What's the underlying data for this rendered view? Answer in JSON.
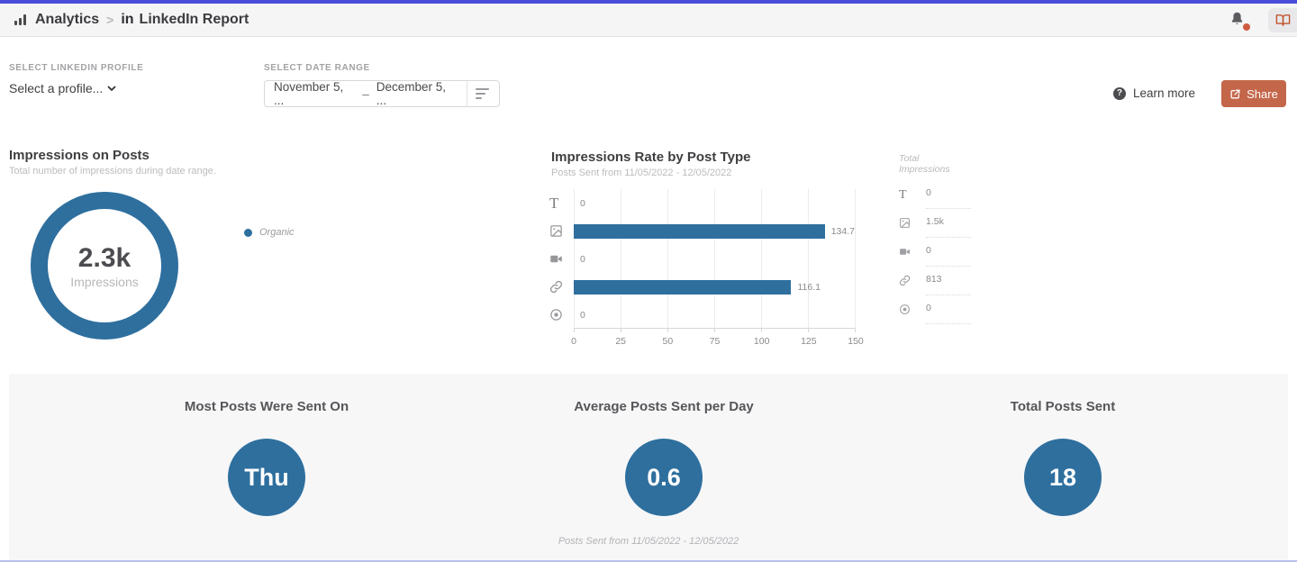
{
  "header": {
    "app": "Analytics",
    "crumb_separator": ">",
    "linkedin_mark": "in",
    "report_title": "LinkedIn Report"
  },
  "controls": {
    "profile_label": "SELECT LINKEDIN PROFILE",
    "profile_value": "Select a profile...",
    "date_label": "SELECT DATE RANGE",
    "date_start": "November 5, ...",
    "date_separator": "–",
    "date_end": "December 5, ...",
    "learn_more_label": "Learn more",
    "learn_more_icon_glyph": "?",
    "share_label": "Share"
  },
  "impressions_summary": {
    "title": "Impressions on Posts",
    "subtitle": "Total number of impressions during date range.",
    "value": "2.3k",
    "value_label": "Impressions",
    "legend": [
      {
        "label": "Organic",
        "color": "#2e6f9e"
      }
    ]
  },
  "chart_data": {
    "type": "bar",
    "orientation": "horizontal",
    "title": "Impressions Rate by Post Type",
    "subtitle": "Posts Sent from 11/05/2022 - 12/05/2022",
    "categories": [
      "text",
      "image",
      "video",
      "link",
      "other"
    ],
    "values": [
      0,
      134.7,
      0,
      116.1,
      0
    ],
    "value_labels": [
      "0",
      "134.7",
      "0",
      "116.1",
      "0"
    ],
    "xlim": [
      0,
      150
    ],
    "xticks": [
      "0",
      "25",
      "50",
      "75",
      "100",
      "125",
      "150"
    ],
    "bar_color": "#2e6f9e",
    "grid": true,
    "legend_position": "none"
  },
  "total_impressions": {
    "title": "Total Impressions",
    "rows": [
      {
        "category": "text",
        "value": "0"
      },
      {
        "category": "image",
        "value": "1.5k"
      },
      {
        "category": "video",
        "value": "0"
      },
      {
        "category": "link",
        "value": "813"
      },
      {
        "category": "other",
        "value": "0"
      }
    ]
  },
  "bottom_stats": {
    "stats": [
      {
        "label": "Most Posts Were Sent On",
        "value": "Thu"
      },
      {
        "label": "Average Posts Sent per Day",
        "value": "0.6"
      },
      {
        "label": "Total Posts Sent",
        "value": "18"
      }
    ],
    "footnote": "Posts Sent from 11/05/2022 - 12/05/2022"
  },
  "colors": {
    "accent_blue": "#2e6f9e",
    "share_button": "#c4664a",
    "top_bar": "#4b4dd8",
    "notification_dot": "#cf5b41",
    "bottom_edge": "#b9c1e8"
  }
}
